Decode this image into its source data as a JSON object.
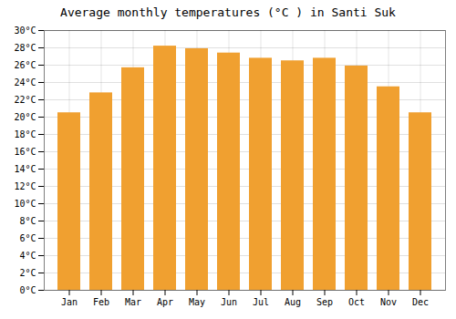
{
  "chart_data": {
    "type": "bar",
    "title": "Average monthly temperatures (°C ) in Santi Suk",
    "categories": [
      "Jan",
      "Feb",
      "Mar",
      "Apr",
      "May",
      "Jun",
      "Jul",
      "Aug",
      "Sep",
      "Oct",
      "Nov",
      "Dec"
    ],
    "values": [
      20.5,
      22.8,
      25.7,
      28.2,
      27.9,
      27.4,
      26.8,
      26.5,
      26.8,
      25.9,
      23.5,
      20.5
    ],
    "color": "#F0A030",
    "ylim": [
      0,
      30
    ],
    "yticks": [
      {
        "value": 0,
        "label": "0°C"
      },
      {
        "value": 2,
        "label": "2°C"
      },
      {
        "value": 4,
        "label": "4°C"
      },
      {
        "value": 6,
        "label": "6°C"
      },
      {
        "value": 8,
        "label": "8°C"
      },
      {
        "value": 10,
        "label": "10°C"
      },
      {
        "value": 12,
        "label": "12°C"
      },
      {
        "value": 14,
        "label": "14°C"
      },
      {
        "value": 16,
        "label": "16°C"
      },
      {
        "value": 18,
        "label": "18°C"
      },
      {
        "value": 20,
        "label": "20°C"
      },
      {
        "value": 22,
        "label": "22°C"
      },
      {
        "value": 24,
        "label": "24°C"
      },
      {
        "value": 26,
        "label": "26°C"
      },
      {
        "value": 28,
        "label": "28°C"
      },
      {
        "value": 30,
        "label": "30°C"
      }
    ],
    "grid": true
  }
}
